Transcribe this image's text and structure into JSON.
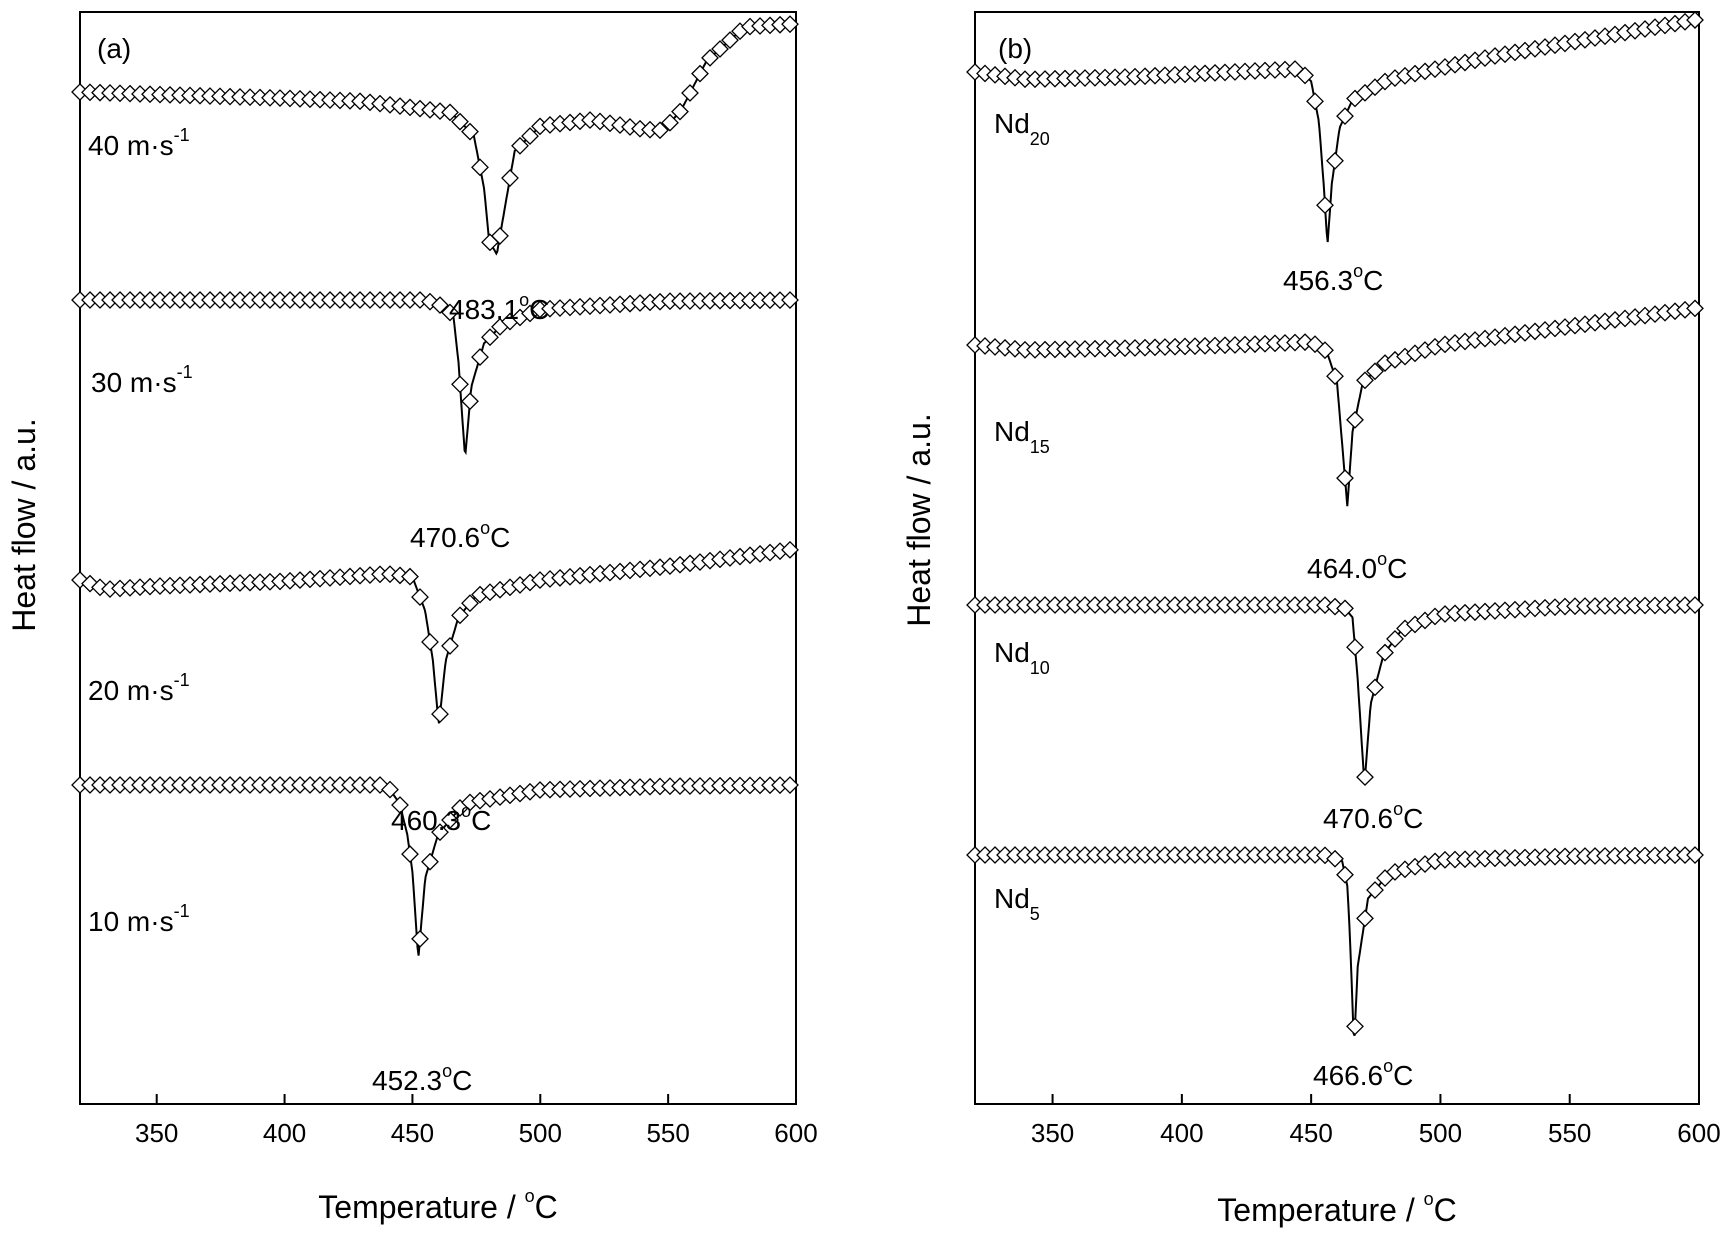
{
  "chart_data": [
    {
      "type": "line",
      "panel_label": "(a)",
      "xlabel": "Temperature / °C",
      "xlabel_text": "Temperature / ",
      "xlabel_unit": "C",
      "ylabel": "Heat flow / a.u.",
      "xlim": [
        320,
        600
      ],
      "xticks": [
        350,
        400,
        450,
        500,
        550,
        600
      ],
      "grid": false,
      "legend": "none",
      "marker": "open-diamond",
      "series": [
        {
          "name": "40 m·s-1",
          "label_main": "40 m·s",
          "label_sup": "-1",
          "peak_temperature": 483.1,
          "peak_label": "483.1°C",
          "peak_value": "483.1",
          "x": [
            320,
            350,
            400,
            430,
            465,
            474,
            478,
            480,
            483,
            486,
            490,
            500,
            520,
            540,
            548,
            555,
            565,
            580,
            600
          ],
          "y_rel": [
            0.0,
            -0.04,
            -0.1,
            -0.15,
            -0.33,
            -0.7,
            -1.55,
            -2.4,
            -2.62,
            -1.9,
            -0.95,
            -0.55,
            -0.45,
            -0.6,
            -0.62,
            -0.3,
            0.5,
            1.05,
            1.1
          ]
        },
        {
          "name": "30 m·s-1",
          "label_main": "30 m·s",
          "label_sup": "-1",
          "peak_temperature": 470.6,
          "peak_label": "470.6°C",
          "peak_value": "470.6",
          "x": [
            320,
            400,
            455,
            462,
            466,
            468,
            470.6,
            473,
            478,
            485,
            500,
            550,
            600
          ],
          "y_rel": [
            0.0,
            0.0,
            0.0,
            -0.1,
            -0.25,
            -1.0,
            -2.55,
            -1.4,
            -0.7,
            -0.4,
            -0.15,
            -0.02,
            0.0
          ]
        },
        {
          "name": "20 m·s-1",
          "label_main": "20 m·s",
          "label_sup": "-1",
          "peak_temperature": 460.3,
          "peak_label": "460.3°C",
          "peak_value": "460.3",
          "x": [
            320,
            330,
            350,
            400,
            440,
            450,
            455,
            458,
            460.3,
            463,
            468,
            475,
            500,
            550,
            600
          ],
          "y_rel": [
            0.0,
            -0.15,
            -0.1,
            -0.02,
            0.1,
            0.05,
            -0.5,
            -1.3,
            -2.35,
            -1.3,
            -0.6,
            -0.25,
            0.0,
            0.22,
            0.5
          ]
        },
        {
          "name": "10 m·s-1",
          "label_main": "10 m·s",
          "label_sup": "-1",
          "peak_temperature": 452.3,
          "peak_label": "452.3°C",
          "peak_value": "452.3",
          "x": [
            320,
            400,
            430,
            440,
            445,
            448,
            450,
            452.3,
            455,
            460,
            470,
            500,
            550,
            600
          ],
          "y_rel": [
            0.0,
            0.0,
            0.0,
            0.0,
            -0.3,
            -0.8,
            -1.4,
            -2.8,
            -1.5,
            -0.8,
            -0.3,
            -0.08,
            -0.02,
            0.0
          ]
        }
      ]
    },
    {
      "type": "line",
      "panel_label": "(b)",
      "xlabel": "Temperature / °C",
      "xlabel_text": "Temperature / ",
      "xlabel_unit": "C",
      "ylabel": "Heat flow / a.u.",
      "xlim": [
        320,
        600
      ],
      "xticks": [
        350,
        400,
        450,
        500,
        550,
        600
      ],
      "grid": false,
      "legend": "none",
      "marker": "open-diamond",
      "series": [
        {
          "name": "Nd20",
          "label_main": "Nd",
          "label_sub": "20",
          "peak_temperature": 456.3,
          "peak_label": "456.3°C",
          "peak_value": "456.3",
          "x": [
            320,
            340,
            380,
            420,
            445,
            450,
            453,
            455,
            456.3,
            458,
            461,
            466,
            480,
            520,
            560,
            600
          ],
          "y_rel": [
            0.0,
            -0.12,
            -0.08,
            0.0,
            0.05,
            -0.15,
            -0.8,
            -1.9,
            -2.8,
            -1.8,
            -0.9,
            -0.45,
            -0.12,
            0.25,
            0.55,
            0.85
          ]
        },
        {
          "name": "Nd15",
          "label_main": "Nd",
          "label_sub": "15",
          "peak_temperature": 464.0,
          "peak_label": "464.0°C",
          "peak_value": "464.0",
          "x": [
            320,
            340,
            380,
            420,
            450,
            456,
            460,
            462,
            464,
            466,
            470,
            478,
            500,
            550,
            600
          ],
          "y_rel": [
            0.0,
            -0.08,
            -0.05,
            0.0,
            0.05,
            -0.1,
            -0.6,
            -1.6,
            -2.6,
            -1.4,
            -0.6,
            -0.3,
            0.0,
            0.3,
            0.6
          ]
        },
        {
          "name": "Nd10",
          "label_main": "Nd",
          "label_sub": "10",
          "peak_temperature": 470.6,
          "peak_label": "470.6°C",
          "peak_value": "470.6",
          "x": [
            320,
            400,
            455,
            463,
            466,
            468,
            470.6,
            473,
            478,
            485,
            500,
            550,
            600
          ],
          "y_rel": [
            0.0,
            0.0,
            0.0,
            -0.05,
            -0.2,
            -1.2,
            -2.9,
            -1.6,
            -0.8,
            -0.4,
            -0.15,
            -0.02,
            0.0
          ]
        },
        {
          "name": "Nd5",
          "label_main": "Nd",
          "label_sub": "5",
          "peak_temperature": 466.6,
          "peak_label": "466.6°C",
          "peak_value": "466.6",
          "x": [
            320,
            400,
            455,
            462,
            464,
            465,
            466.6,
            468,
            472,
            480,
            500,
            550,
            600
          ],
          "y_rel": [
            0.0,
            0.0,
            0.0,
            -0.1,
            -0.5,
            -1.3,
            -3.1,
            -1.8,
            -0.7,
            -0.3,
            -0.08,
            -0.02,
            0.0
          ]
        }
      ]
    }
  ]
}
